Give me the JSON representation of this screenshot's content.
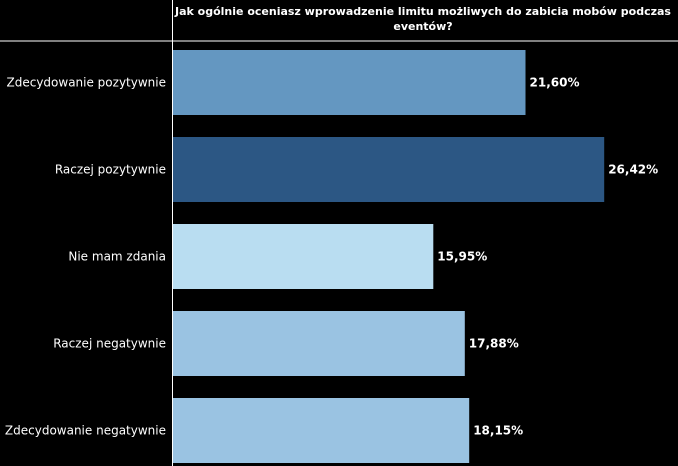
{
  "chart_data": {
    "type": "bar",
    "orientation": "horizontal",
    "title_lines": [
      "Jak ogólnie oceniasz wprowadzenie limitu możliwych do zabicia mobów podczas",
      "eventów?"
    ],
    "categories": [
      "Zdecydowanie pozytywnie",
      "Raczej pozytywnie",
      "Nie mam zdania",
      "Raczej negatywnie",
      "Zdecydowanie negatywnie"
    ],
    "values": [
      21.6,
      26.42,
      15.95,
      17.88,
      18.15
    ],
    "value_labels": [
      "21,60%",
      "26,42%",
      "15,95%",
      "17,88%",
      "18,15%"
    ],
    "colors": [
      "#6497c1",
      "#2c5784",
      "#b9ddf1",
      "#9ac3e2",
      "#9ac3e2"
    ],
    "xlabel": "",
    "ylabel": "",
    "xlim": [
      0,
      30
    ],
    "grid": false,
    "legend": "none"
  },
  "colors": {
    "background": "#000000",
    "text": "#ffffff",
    "rule": "#ffffff"
  }
}
